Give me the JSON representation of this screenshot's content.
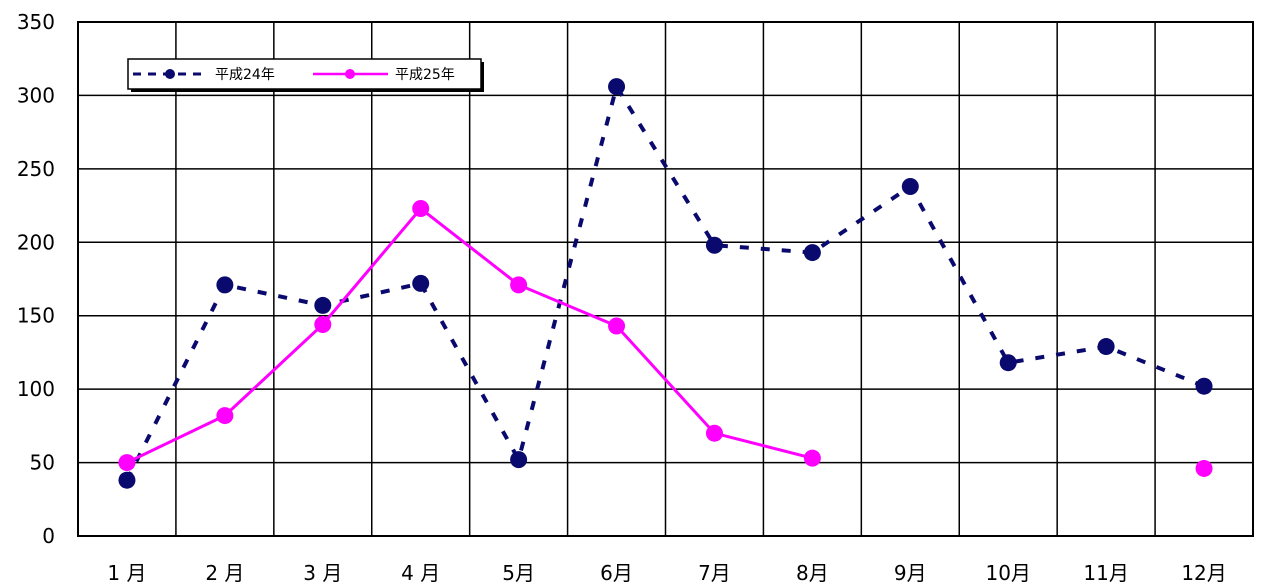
{
  "chart_data": {
    "type": "line",
    "categories": [
      "1 月",
      "2 月",
      "3 月",
      "4 月",
      "5月",
      "6月",
      "7月",
      "8月",
      "9月",
      "10月",
      "11月",
      "12月"
    ],
    "series": [
      {
        "name": "平成24年",
        "color": "#0a0a6e",
        "line_style": "dashed",
        "values": [
          38,
          171,
          157,
          172,
          52,
          306,
          198,
          193,
          238,
          118,
          129,
          102
        ]
      },
      {
        "name": "平成25年",
        "color": "#ff00ff",
        "line_style": "solid",
        "values": [
          50,
          82,
          144,
          223,
          171,
          143,
          70,
          53,
          null,
          null,
          null,
          46
        ]
      }
    ],
    "ylim": [
      0,
      350
    ],
    "yticks": [
      0,
      50,
      100,
      150,
      200,
      250,
      300,
      350
    ],
    "grid": true,
    "legend_position": "top-left"
  }
}
